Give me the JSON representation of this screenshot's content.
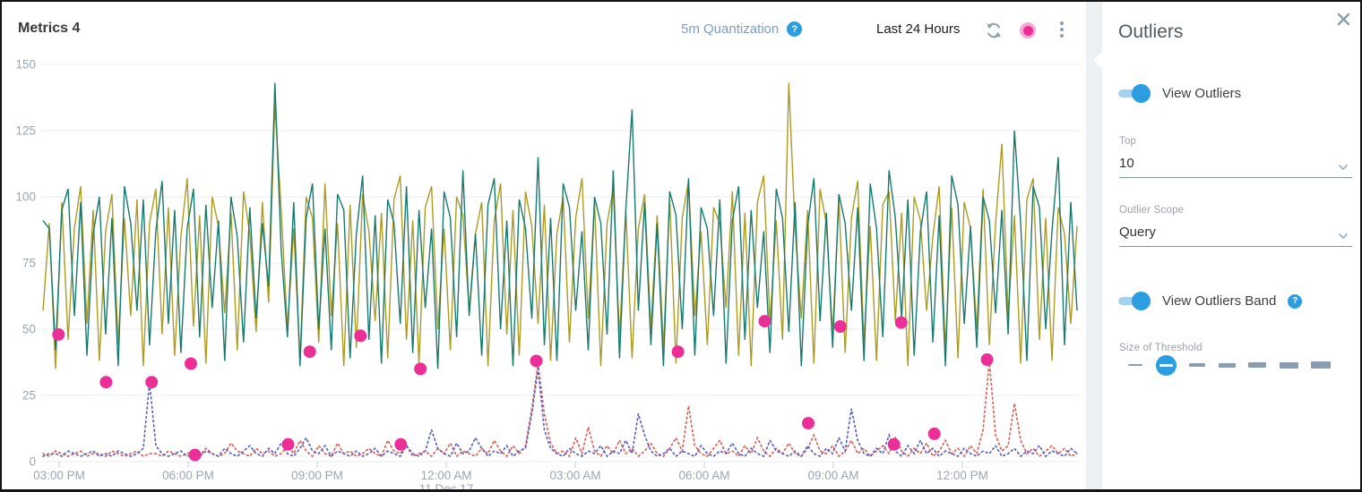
{
  "header": {
    "title": "Metrics 4",
    "quantization_label": "5m Quantization",
    "help_glyph": "?",
    "time_range": "Last 24 Hours"
  },
  "panel": {
    "title": "Outliers",
    "view_outliers_label": "View Outliers",
    "top_label": "Top",
    "top_value": "10",
    "outlier_scope_label": "Outlier Scope",
    "outlier_scope_value": "Query",
    "view_outliers_band_label": "View Outliers Band",
    "band_help_glyph": "?",
    "size_of_threshold_label": "Size of Threshold",
    "threshold": {
      "count": 7,
      "selected_index": 1
    }
  },
  "colors": {
    "accent_blue": "#2b9de0",
    "outlier_pink": "#ec2f96",
    "muted_blue_text": "#7d9cc4",
    "icon_gray": "#8d9fb3",
    "axis_text": "#9aa6b2",
    "gridline": "#e8ebef"
  },
  "chart_data": {
    "type": "line",
    "title": "Metrics 4",
    "x_tick_labels": [
      "03:00 PM",
      "06:00 PM",
      "09:00 PM",
      "12:00 AM",
      "03:00 AM",
      "06:00 AM",
      "09:00 AM",
      "12:00 PM"
    ],
    "x_date_label": "11 Dec 17",
    "x_date_under": "12:00 AM",
    "y_ticks": [
      0,
      25,
      50,
      75,
      100,
      125,
      150
    ],
    "ylim": [
      0,
      150
    ],
    "grid": true,
    "legend": "none",
    "series": [
      {
        "name": "metric-olive",
        "color": "#ad9b23",
        "style": "solid",
        "values": [
          57,
          90,
          35,
          98,
          46,
          88,
          104,
          52,
          95,
          38,
          87,
          101,
          44,
          92,
          55,
          99,
          36,
          90,
          103,
          48,
          96,
          40,
          85,
          107,
          51,
          93,
          37,
          100,
          89,
          56,
          94,
          42,
          102,
          86,
          49,
          98,
          60,
          135,
          95,
          50,
          88,
          38,
          100,
          92,
          45,
          105,
          55,
          90,
          36,
          97,
          43,
          101,
          87,
          53,
          94,
          39,
          99,
          108,
          46,
          91,
          37,
          96,
          104,
          50,
          88,
          42,
          100,
          93,
          57,
          86,
          98,
          36,
          91,
          105,
          48,
          95,
          40,
          102,
          89,
          52,
          97,
          38,
          86,
          100,
          45,
          92,
          107,
          54,
          98,
          36,
          90,
          103,
          47,
          95,
          39,
          88,
          101,
          50,
          93,
          43,
          99,
          37,
          92,
          106,
          55,
          87,
          44,
          96,
          90,
          58,
          102,
          40,
          94,
          36,
          98,
          108,
          52,
          91,
          46,
          143,
          88,
          54,
          95,
          37,
          103,
          90,
          48,
          99,
          41,
          92,
          106,
          45,
          89,
          38,
          97,
          102,
          53,
          94,
          36,
          100,
          91,
          57,
          85,
          104,
          42,
          96,
          39,
          98,
          88,
          50,
          103,
          44,
          90,
          120,
          55,
          93,
          37,
          99,
          107,
          46,
          92,
          38,
          96,
          86,
          52,
          89
        ]
      },
      {
        "name": "metric-teal",
        "color": "#177a6e",
        "style": "solid",
        "values": [
          91,
          88,
          42,
          95,
          103,
          55,
          98,
          40,
          86,
          100,
          48,
          92,
          36,
          104,
          90,
          57,
          99,
          44,
          87,
          106,
          52,
          95,
          41,
          88,
          103,
          47,
          97,
          58,
          91,
          38,
          100,
          85,
          45,
          96,
          54,
          90,
          66,
          143,
          80,
          47,
          98,
          36,
          92,
          105,
          50,
          88,
          42,
          101,
          95,
          39,
          86,
          108,
          46,
          93,
          37,
          99,
          90,
          52,
          104,
          41,
          95,
          58,
          88,
          35,
          102,
          92,
          47,
          110,
          55,
          86,
          40,
          97,
          107,
          50,
          91,
          36,
          99,
          88,
          54,
          115,
          44,
          92,
          38,
          105,
          96,
          57,
          87,
          42,
          100,
          90,
          48,
          110,
          39,
          95,
          133,
          57,
          98,
          44,
          90,
          36,
          102,
          93,
          50,
          107,
          40,
          96,
          88,
          55,
          99,
          37,
          91,
          104,
          46,
          95,
          58,
          87,
          41,
          103,
          92,
          49,
          98,
          36,
          89,
          107,
          53,
          94,
          43,
          101,
          90,
          57,
          96,
          38,
          105,
          88,
          47,
          110,
          92,
          54,
          99,
          40,
          87,
          102,
          45,
          93,
          36,
          108,
          97,
          52,
          89,
          43,
          100,
          91,
          56,
          95,
          48,
          125,
          90,
          38,
          104,
          96,
          50,
          87,
          115,
          44,
          98,
          57
        ]
      },
      {
        "name": "band-red-dotted",
        "color": "#e06058",
        "style": "dotted",
        "values": [
          3,
          2,
          4,
          3,
          2,
          3,
          4,
          2,
          3,
          3,
          2,
          4,
          3,
          2,
          3,
          4,
          2,
          3,
          3,
          2,
          4,
          3,
          2,
          3,
          4,
          2,
          5,
          3,
          2,
          3,
          7,
          4,
          3,
          2,
          5,
          3,
          4,
          2,
          3,
          6,
          3,
          8,
          4,
          2,
          6,
          3,
          2,
          7,
          3,
          4,
          2,
          3,
          5,
          3,
          2,
          8,
          4,
          3,
          6,
          2,
          3,
          4,
          2,
          5,
          3,
          7,
          2,
          4,
          3,
          2,
          5,
          3,
          8,
          4,
          2,
          6,
          3,
          6,
          20,
          37,
          18,
          7,
          3,
          4,
          2,
          9,
          3,
          13,
          4,
          2,
          6,
          3,
          8,
          3,
          5,
          2,
          4,
          7,
          3,
          2,
          5,
          9,
          4,
          21,
          6,
          3,
          2,
          5,
          8,
          3,
          4,
          2,
          6,
          3,
          9,
          4,
          2,
          5,
          3,
          7,
          3,
          2,
          5,
          10,
          4,
          3,
          6,
          2,
          4,
          8,
          3,
          5,
          2,
          4,
          6,
          3,
          9,
          4,
          2,
          5,
          3,
          7,
          2,
          4,
          8,
          3,
          5,
          2,
          6,
          3,
          12,
          38,
          10,
          4,
          6,
          22,
          8,
          3,
          5,
          2,
          4,
          6,
          3,
          5,
          2,
          3
        ]
      },
      {
        "name": "band-blue-dotted",
        "color": "#5b63c4",
        "style": "dotted",
        "values": [
          2,
          3,
          3,
          2,
          4,
          3,
          2,
          3,
          4,
          2,
          3,
          2,
          4,
          3,
          2,
          3,
          5,
          30,
          6,
          3,
          2,
          3,
          4,
          2,
          3,
          2,
          4,
          3,
          2,
          5,
          3,
          2,
          4,
          6,
          3,
          2,
          5,
          3,
          7,
          3,
          2,
          5,
          9,
          4,
          3,
          6,
          2,
          4,
          3,
          2,
          4,
          2,
          3,
          5,
          2,
          4,
          3,
          2,
          6,
          3,
          2,
          4,
          12,
          5,
          3,
          2,
          7,
          3,
          4,
          9,
          5,
          2,
          4,
          3,
          6,
          2,
          4,
          5,
          18,
          35,
          12,
          5,
          3,
          2,
          5,
          3,
          2,
          4,
          3,
          6,
          2,
          4,
          3,
          8,
          3,
          18,
          10,
          4,
          2,
          3,
          5,
          2,
          4,
          3,
          2,
          6,
          3,
          2,
          4,
          3,
          7,
          3,
          2,
          5,
          3,
          2,
          8,
          4,
          3,
          2,
          4,
          2,
          6,
          3,
          2,
          5,
          3,
          9,
          4,
          20,
          8,
          3,
          2,
          5,
          3,
          10,
          4,
          2,
          6,
          3,
          8,
          3,
          5,
          2,
          4,
          3,
          2,
          5,
          3,
          2,
          4,
          3,
          6,
          2,
          3,
          5,
          2,
          4,
          3,
          6,
          2,
          4,
          3,
          2,
          5,
          3
        ]
      }
    ],
    "outliers": {
      "name": "outlier-points",
      "color": "#ec2f96",
      "points": [
        [
          0.015,
          48
        ],
        [
          0.061,
          30
        ],
        [
          0.105,
          30
        ],
        [
          0.143,
          37
        ],
        [
          0.147,
          2.5
        ],
        [
          0.237,
          6.5
        ],
        [
          0.258,
          41.5
        ],
        [
          0.307,
          47.5
        ],
        [
          0.346,
          6.5
        ],
        [
          0.365,
          35
        ],
        [
          0.477,
          38
        ],
        [
          0.614,
          41.5
        ],
        [
          0.698,
          53
        ],
        [
          0.74,
          14.5
        ],
        [
          0.771,
          51
        ],
        [
          0.823,
          6.5
        ],
        [
          0.83,
          52.5
        ],
        [
          0.862,
          10.5
        ],
        [
          0.913,
          38.5
        ]
      ]
    }
  }
}
